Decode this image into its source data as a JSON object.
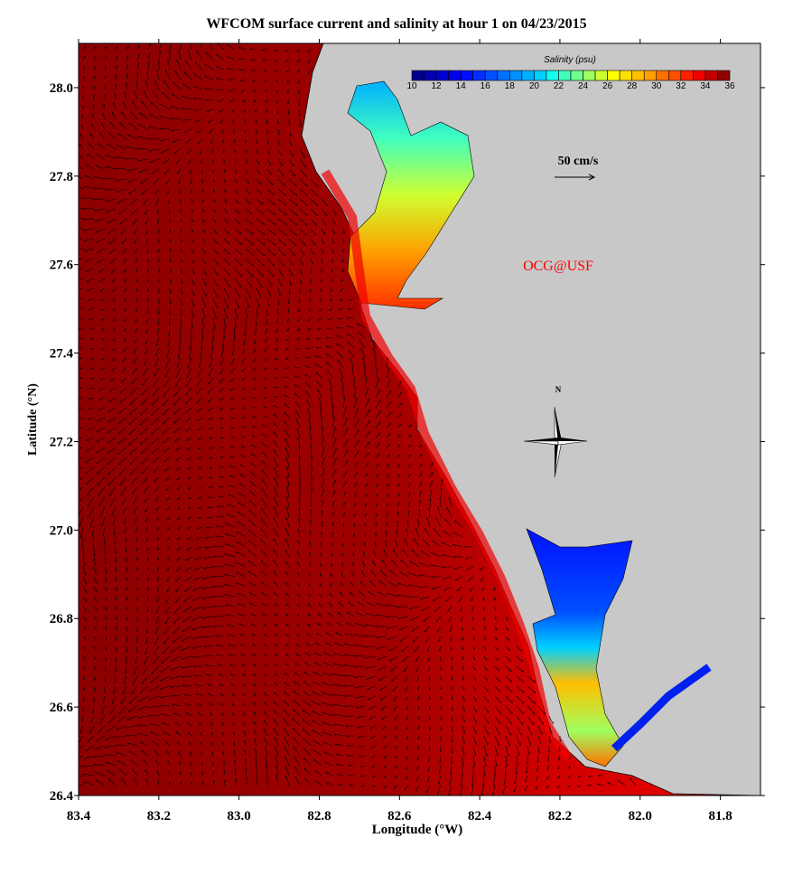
{
  "title": "WFCOM surface current and salinity at hour 1 on 04/23/2015",
  "chart_data": {
    "type": "heatmap",
    "subtype": "vector-field-map",
    "title": "WFCOM surface current and salinity at hour 1 on 04/23/2015",
    "xlabel": "Longitude (°W)",
    "ylabel": "Latitude (°N)",
    "xlim": [
      83.4,
      81.7
    ],
    "ylim": [
      26.4,
      28.1
    ],
    "x_ticks": [
      "83.4",
      "83.2",
      "83.0",
      "82.8",
      "82.6",
      "82.4",
      "82.2",
      "82.0",
      "81.8"
    ],
    "y_ticks": [
      "26.4",
      "26.6",
      "26.8",
      "27.0",
      "27.2",
      "27.4",
      "27.6",
      "27.8",
      "28.0"
    ],
    "colorbar": {
      "label": "Salinity (psu)",
      "range": [
        10,
        36
      ],
      "ticks": [
        "10",
        "12",
        "14",
        "16",
        "18",
        "20",
        "22",
        "24",
        "26",
        "28",
        "30",
        "32",
        "34",
        "36"
      ],
      "colors": [
        "#00008f",
        "#0000b0",
        "#0000d0",
        "#0000f0",
        "#0010ff",
        "#0030ff",
        "#0050ff",
        "#0070ff",
        "#0090ff",
        "#00b0ff",
        "#00d0ff",
        "#10ffef",
        "#40ffbf",
        "#70ff8f",
        "#a0ff5f",
        "#cfff30",
        "#ffff00",
        "#ffdf00",
        "#ffbf00",
        "#ff9f00",
        "#ff7000",
        "#ff5000",
        "#ff2000",
        "#f00000",
        "#c00000",
        "#8f0000"
      ]
    },
    "scale_vector_label": "50 cm/s",
    "watermark": "OCG@USF",
    "north_label": "N",
    "land_color": "#c8c8c8",
    "ocean_salinity_approx": 35
  }
}
